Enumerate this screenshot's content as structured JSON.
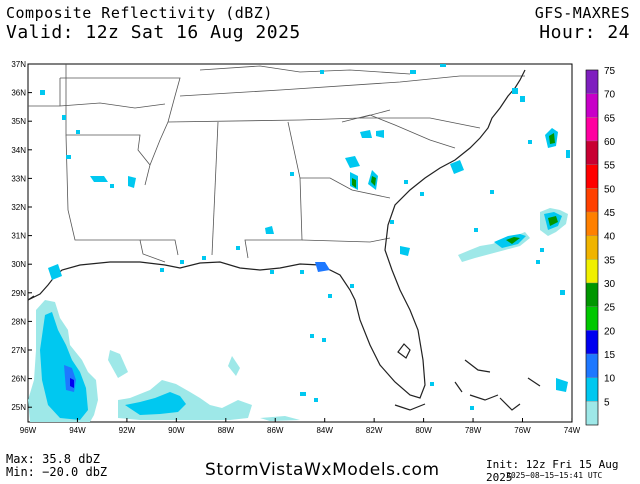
{
  "header": {
    "title": "Composite Reflectivity (dBZ)",
    "valid": "Valid: 12z Sat 16 Aug 2025",
    "model": "GFS-MAXRES",
    "hour": "Hour: 24"
  },
  "axes": {
    "lat_labels": [
      "37N",
      "36N",
      "35N",
      "34N",
      "33N",
      "32N",
      "31N",
      "30N",
      "29N",
      "28N",
      "27N",
      "26N",
      "25N"
    ],
    "lon_labels": [
      "96W",
      "94W",
      "92W",
      "90W",
      "88W",
      "86W",
      "84W",
      "82W",
      "80W",
      "78W",
      "76W",
      "74W"
    ]
  },
  "colorbar": {
    "levels": [
      "75",
      "70",
      "65",
      "60",
      "55",
      "50",
      "45",
      "40",
      "35",
      "30",
      "25",
      "20",
      "15",
      "10",
      "5"
    ],
    "colors": [
      "#7f1fbf",
      "#c800c8",
      "#ff00a0",
      "#c80032",
      "#ff0000",
      "#ff4000",
      "#ff8000",
      "#f0b400",
      "#f0f000",
      "#009600",
      "#00c800",
      "#0000f0",
      "#1e78ff",
      "#00c8f0",
      "#9ee8e8"
    ]
  },
  "footer": {
    "max": "Max: 35.8 dbZ",
    "min": "Min: −20.0 dbZ",
    "site": "StormVistaWxModels.com",
    "init": "Init: 12z Fri 15 Aug 2025",
    "stamp": "2025−08−15−15:41 UTC"
  }
}
